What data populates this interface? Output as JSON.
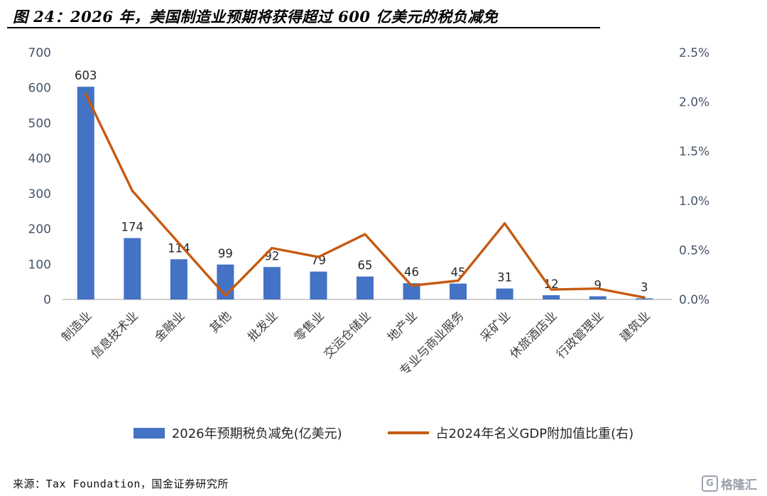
{
  "header": {
    "title": "图 24：2026 年，美国制造业预期将获得超过 600 亿美元的税负减免"
  },
  "footer": {
    "source": "来源：Tax Foundation，国金证券研究所",
    "logo_glyph": "G",
    "logo_text": "格隆汇"
  },
  "colors": {
    "bar": "#4472C4",
    "line": "#C55A11",
    "axis_text": "#44546A",
    "baseline": "#BFBFBF"
  },
  "chart_data": {
    "type": "bar",
    "subtype": "bar+line combo, dual axis",
    "title": "图 24：2026 年，美国制造业预期将获得超过 600 亿美元的税负减免",
    "categories": [
      "制造业",
      "信息技术业",
      "金融业",
      "其他",
      "批发业",
      "零售业",
      "交运仓储业",
      "地产业",
      "专业与商业服务",
      "采矿业",
      "休旅酒店业",
      "行政管理业",
      "建筑业"
    ],
    "series": [
      {
        "name": "2026年预期税负减免(亿美元)",
        "type": "bar",
        "axis": "left",
        "color": "#4472C4",
        "values": [
          603,
          174,
          114,
          99,
          92,
          79,
          65,
          46,
          45,
          31,
          12,
          9,
          3
        ]
      },
      {
        "name": "占2024年名义GDP附加值比重(右)",
        "type": "line",
        "axis": "right",
        "color": "#C55A11",
        "values": [
          2.08,
          1.1,
          0.57,
          0.04,
          0.52,
          0.43,
          0.66,
          0.14,
          0.19,
          0.77,
          0.1,
          0.11,
          0.02
        ]
      }
    ],
    "left_axis": {
      "min": 0,
      "max": 700,
      "step": 100
    },
    "right_axis": {
      "min": 0,
      "max": 2.5,
      "step": 0.5,
      "format": "percent"
    },
    "bar_labels_shown": true,
    "grid": false,
    "legend_position": "bottom"
  }
}
